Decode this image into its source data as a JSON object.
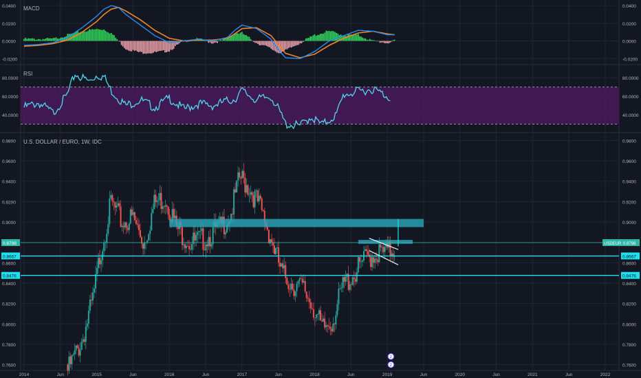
{
  "colors": {
    "background": "#131722",
    "grid": "#232735",
    "axis_text": "#b2b5be",
    "macd_line": "#2b8cf0",
    "signal_line": "#f0872b",
    "hist_pos": "#33e05e",
    "hist_neg": "#f4a7b1",
    "rsi_line": "#4fd8ee",
    "rsi_band": "#4a1a5a",
    "candle_up": "#26a69a",
    "candle_down": "#ef5350",
    "level_line": "#1fe0f0",
    "zone_fill": "#2aa8bb",
    "price_tag": "#2fb8a8"
  },
  "chart_data": [
    {
      "type": "line",
      "panel": "macd",
      "title": "MACD",
      "y_ticks": [
        "0.0400",
        "0.0200",
        "0.0000",
        "-0.0200"
      ],
      "ylim": [
        -0.026,
        0.044
      ],
      "series": [
        {
          "role": "macd",
          "x": [
            2014.0,
            2014.2,
            2014.4,
            2014.6,
            2014.8,
            2015.0,
            2015.1,
            2015.2,
            2015.3,
            2015.4,
            2015.6,
            2015.8,
            2016.0,
            2016.2,
            2016.4,
            2016.6,
            2016.8,
            2016.9,
            2017.0,
            2017.2,
            2017.4,
            2017.5,
            2017.6,
            2017.8,
            2018.0,
            2018.2,
            2018.4,
            2018.6,
            2018.8,
            2019.0,
            2019.1
          ],
          "values": [
            -0.005,
            -0.004,
            -0.002,
            0.004,
            0.015,
            0.028,
            0.036,
            0.04,
            0.038,
            0.03,
            0.018,
            0.006,
            -0.002,
            0.0,
            0.002,
            0.0,
            0.004,
            0.012,
            0.018,
            0.014,
            0.002,
            -0.01,
            -0.019,
            -0.02,
            -0.012,
            0.0,
            0.006,
            0.012,
            0.011,
            0.007,
            0.007
          ]
        },
        {
          "role": "signal",
          "x": [
            2014.0,
            2014.2,
            2014.4,
            2014.6,
            2014.8,
            2015.0,
            2015.1,
            2015.2,
            2015.3,
            2015.4,
            2015.6,
            2015.8,
            2016.0,
            2016.2,
            2016.4,
            2016.6,
            2016.8,
            2016.9,
            2017.0,
            2017.2,
            2017.4,
            2017.5,
            2017.6,
            2017.8,
            2018.0,
            2018.2,
            2018.4,
            2018.6,
            2018.8,
            2019.0,
            2019.1
          ],
          "values": [
            -0.006,
            -0.005,
            -0.003,
            0.001,
            0.01,
            0.022,
            0.03,
            0.036,
            0.038,
            0.034,
            0.024,
            0.012,
            0.003,
            0.0,
            0.001,
            0.001,
            0.003,
            0.008,
            0.014,
            0.015,
            0.006,
            -0.004,
            -0.014,
            -0.019,
            -0.015,
            -0.005,
            0.003,
            0.009,
            0.011,
            0.008,
            0.007
          ]
        }
      ]
    },
    {
      "type": "line",
      "panel": "rsi",
      "title": "RSI",
      "y_ticks": [
        "80.0000",
        "60.0000",
        "40.0000"
      ],
      "ylim": [
        23,
        92
      ],
      "band": [
        30,
        70
      ],
      "series": [
        {
          "role": "rsi",
          "x": [
            2014.0,
            2014.2,
            2014.4,
            2014.6,
            2014.7,
            2014.9,
            2015.0,
            2015.1,
            2015.2,
            2015.4,
            2015.6,
            2015.8,
            2016.0,
            2016.2,
            2016.4,
            2016.6,
            2016.8,
            2016.9,
            2017.0,
            2017.2,
            2017.4,
            2017.5,
            2017.6,
            2017.8,
            2017.95,
            2018.1,
            2018.3,
            2018.4,
            2018.6,
            2018.8,
            2019.0,
            2019.05
          ],
          "values": [
            48,
            53,
            42,
            62,
            84,
            76,
            83,
            81,
            66,
            50,
            56,
            48,
            58,
            46,
            52,
            50,
            55,
            57,
            66,
            56,
            60,
            46,
            30,
            28,
            38,
            29,
            40,
            62,
            65,
            68,
            60,
            58
          ]
        }
      ]
    },
    {
      "type": "candlestick",
      "panel": "price",
      "title": "U.S. DOLLAR / EURO, 1W, IDC",
      "x_ticks": [
        "2014",
        "Jun",
        "2015",
        "Jun",
        "2016",
        "Jun",
        "2017",
        "Jun",
        "2018",
        "Jun",
        "2019",
        "Jun",
        "2020",
        "Jun",
        "2021",
        "Jun",
        "2022"
      ],
      "y_ticks": [
        "0.9800",
        "0.9600",
        "0.9400",
        "0.9200",
        "0.9000",
        "0.8800",
        "0.8600",
        "0.8400",
        "0.8200",
        "0.8000",
        "0.7800",
        "0.7600"
      ],
      "ylim": [
        0.755,
        0.985
      ],
      "path_x": [
        2014.6,
        2014.8,
        2014.95,
        2015.05,
        2015.2,
        2015.35,
        2015.5,
        2015.65,
        2015.8,
        2015.95,
        2016.1,
        2016.3,
        2016.5,
        2016.7,
        2016.85,
        2016.97,
        2017.1,
        2017.25,
        2017.4,
        2017.55,
        2017.7,
        2017.85,
        2018.0,
        2018.1,
        2018.25,
        2018.4,
        2018.55,
        2018.7,
        2018.85,
        2019.0,
        2019.1
      ],
      "path_close": [
        0.76,
        0.79,
        0.83,
        0.875,
        0.925,
        0.905,
        0.91,
        0.885,
        0.925,
        0.93,
        0.9,
        0.885,
        0.89,
        0.9,
        0.915,
        0.95,
        0.94,
        0.92,
        0.89,
        0.855,
        0.845,
        0.84,
        0.82,
        0.8,
        0.81,
        0.845,
        0.855,
        0.87,
        0.875,
        0.876,
        0.8798
      ],
      "current_price": "0.8798",
      "symbol_tag": "USDEUR",
      "levels": [
        "0.8667",
        "0.8476"
      ],
      "zones": [
        {
          "x0": 2016.0,
          "x1": 2019.5,
          "y0": 0.895,
          "y1": 0.903
        },
        {
          "x0": 2018.6,
          "x1": 2019.35,
          "y0": 0.8786,
          "y1": 0.8824
        }
      ],
      "markers": [
        "2",
        "2"
      ]
    }
  ]
}
